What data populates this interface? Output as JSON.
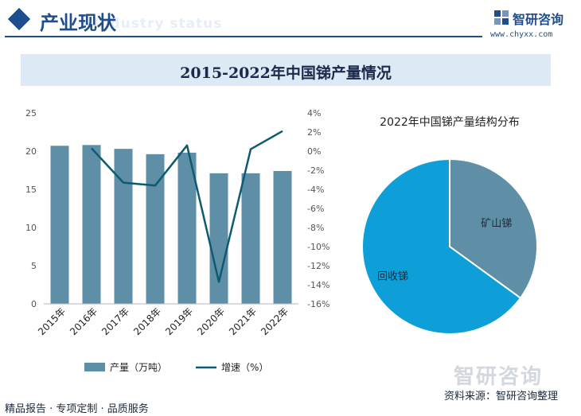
{
  "header": {
    "section_title": "产业现状",
    "section_subtitle": "Industry status",
    "brand_name": "智研咨询",
    "brand_url": "www.chyxx.com"
  },
  "banner": {
    "title": "2015-2022年中国锑产量情况"
  },
  "chart_data": [
    {
      "type": "bar+line",
      "categories": [
        "2015年",
        "2016年",
        "2017年",
        "2018年",
        "2019年",
        "2020年",
        "2021年",
        "2022年"
      ],
      "series": [
        {
          "name": "产量（万吨）",
          "type": "bar",
          "axis": "left",
          "values": [
            20.7,
            20.8,
            20.3,
            19.6,
            19.8,
            17.1,
            17.1,
            17.4
          ]
        },
        {
          "name": "增速（%）",
          "type": "line",
          "axis": "right",
          "values": [
            null,
            0.3,
            -3.3,
            -3.6,
            0.6,
            -13.7,
            0.2,
            2.1
          ]
        }
      ],
      "left_axis": {
        "ylim": [
          0,
          25
        ],
        "ticks": [
          "0",
          "5",
          "10",
          "15",
          "20",
          "25"
        ]
      },
      "right_axis": {
        "ylim": [
          -16,
          4
        ],
        "ticks": [
          "4%",
          "2%",
          "0%",
          "-2%",
          "-4%",
          "-6%",
          "-8%",
          "-10%",
          "-12%",
          "-14%",
          "-16%"
        ]
      },
      "legend": [
        "产量（万吨）",
        "增速（%）"
      ],
      "legend_position": "bottom",
      "colors": {
        "bar": "#5f8fa6",
        "line": "#0e5a73"
      }
    },
    {
      "type": "pie",
      "title": "2022年中国锑产量结构分布",
      "labels": [
        "矿山锑",
        "回收锑"
      ],
      "values": [
        35,
        65
      ],
      "colors": [
        "#5f8fa6",
        "#0e9fd8"
      ]
    }
  ],
  "footer": {
    "left": "精品报告 · 专项定制 · 品质服务",
    "source": "资料来源：智研咨询整理",
    "watermark": "智研咨询"
  }
}
